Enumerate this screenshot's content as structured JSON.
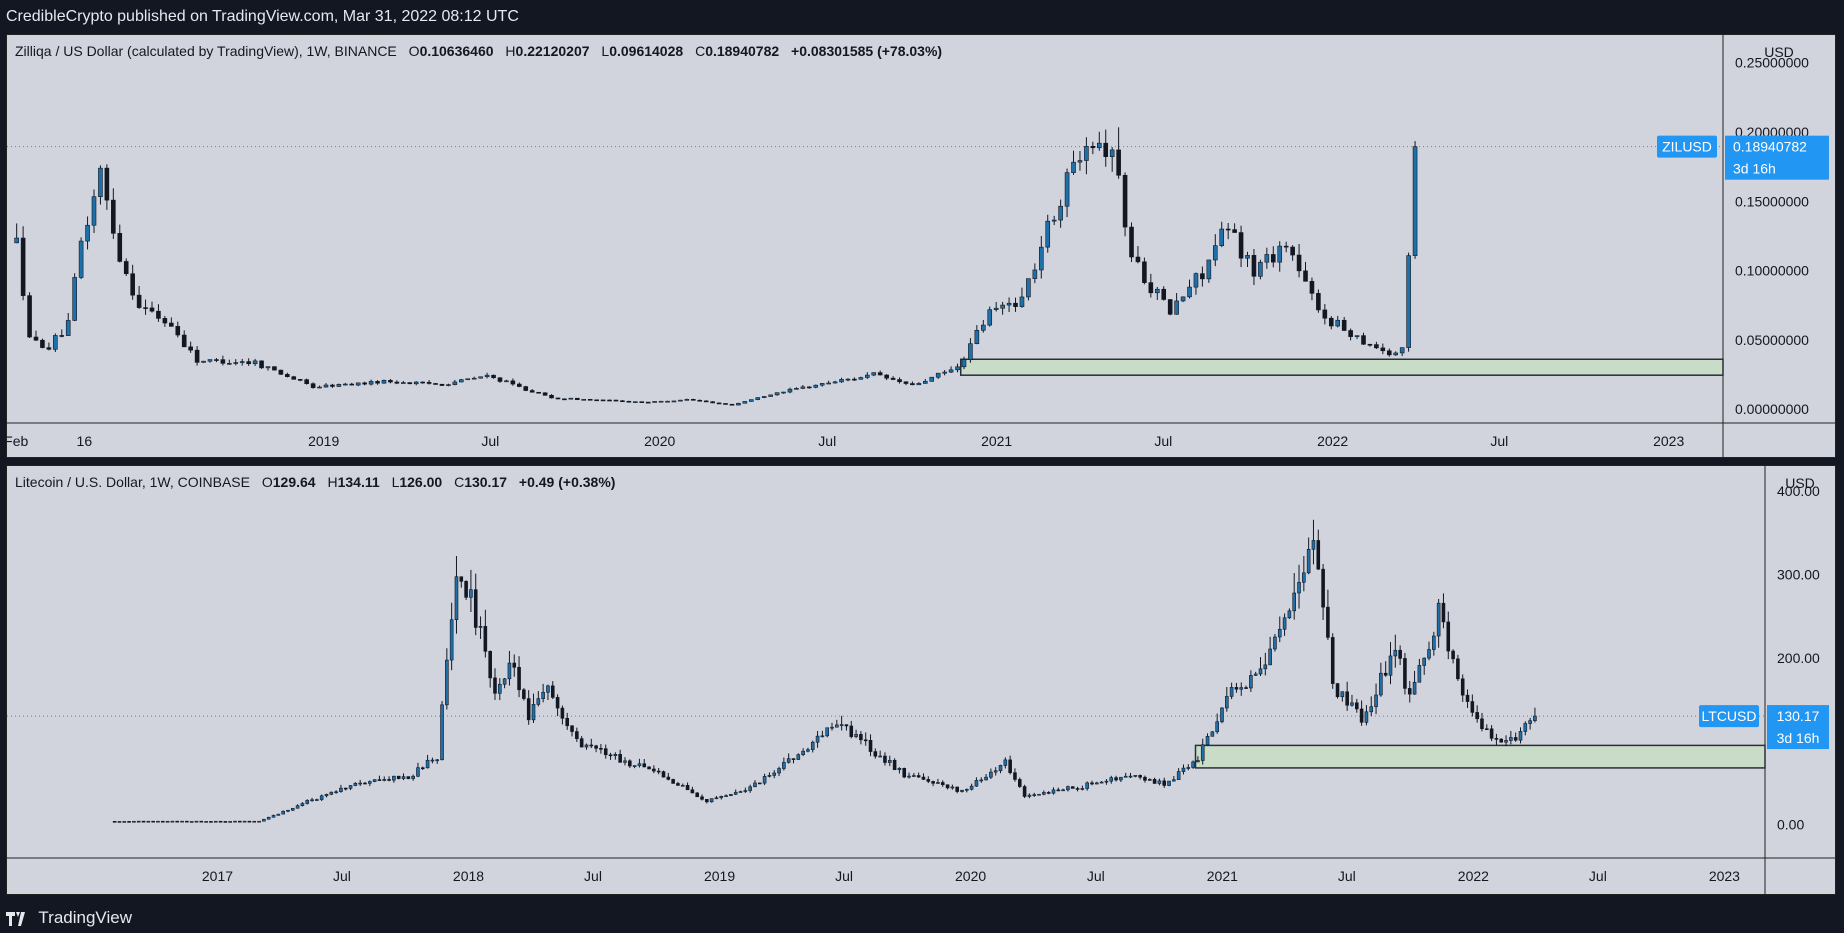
{
  "header": {
    "publisher": "CredibleCrypto published on TradingView.com, Mar 31, 2022 08:12 UTC"
  },
  "footer": {
    "brand": "TradingView"
  },
  "colors": {
    "candle_up": "#1f6fa8",
    "candle_down": "#131722",
    "price_line": "#2196f3",
    "zone_fill": "#c8dcc8",
    "tag_bg": "#2196f3"
  },
  "panels": [
    {
      "legend": {
        "title": "Zilliqa / US Dollar (calculated by TradingView), 1W, BINANCE",
        "open": "0.10636460",
        "high": "0.22120207",
        "low": "0.09614028",
        "close": "0.18940782",
        "change": "+0.08301585 (+78.03%)"
      },
      "currency": "USD",
      "symbol_tag": "ZILUSD",
      "price_tag": "0.18940782",
      "countdown": "3d 16h",
      "y_ticks": [
        "0.25000000",
        "0.20000000",
        "0.15000000",
        "0.10000000",
        "0.05000000",
        "0.00000000"
      ],
      "x_ticks": [
        "Feb",
        "16",
        "2019",
        "Jul",
        "2020",
        "Jul",
        "2021",
        "Jul",
        "2022",
        "Jul",
        "2023"
      ]
    },
    {
      "legend": {
        "title": "Litecoin / U.S. Dollar, 1W, COINBASE",
        "open": "129.64",
        "high": "134.11",
        "low": "126.00",
        "close": "130.17",
        "change": "+0.49 (+0.38%)"
      },
      "currency": "USD",
      "symbol_tag": "LTCUSD",
      "price_tag": "130.17",
      "countdown": "3d 16h",
      "y_ticks": [
        "400.00",
        "300.00",
        "200.00",
        "0.00"
      ],
      "x_ticks": [
        "2017",
        "Jul",
        "2018",
        "Jul",
        "2019",
        "Jul",
        "2020",
        "Jul",
        "2021",
        "Jul",
        "2022",
        "Jul",
        "2023"
      ]
    }
  ],
  "chart_data": [
    {
      "type": "candlestick",
      "title": "Zilliqa / US Dollar (calculated by TradingView), 1W, BINANCE",
      "ylabel": "USD",
      "ylim": [
        -0.01,
        0.27
      ],
      "x_range": [
        "2018-01-22",
        "2023-03-01"
      ],
      "last_price": 0.18940782,
      "support_zone": {
        "from": "2020-11-23",
        "low": 0.0245,
        "high": 0.036
      },
      "anchors": [
        [
          "2018-01-29",
          0.12
        ],
        [
          "2018-02-12",
          0.05
        ],
        [
          "2018-03-05",
          0.045
        ],
        [
          "2018-03-26",
          0.06
        ],
        [
          "2018-04-09",
          0.12
        ],
        [
          "2018-04-30",
          0.17
        ],
        [
          "2018-05-21",
          0.11
        ],
        [
          "2018-06-11",
          0.075
        ],
        [
          "2018-07-16",
          0.06
        ],
        [
          "2018-08-13",
          0.035
        ],
        [
          "2018-10-15",
          0.034
        ],
        [
          "2018-12-17",
          0.016
        ],
        [
          "2019-03-04",
          0.02
        ],
        [
          "2019-05-06",
          0.018
        ],
        [
          "2019-06-24",
          0.024
        ],
        [
          "2019-09-02",
          0.008
        ],
        [
          "2019-12-16",
          0.005
        ],
        [
          "2020-01-27",
          0.007
        ],
        [
          "2020-03-16",
          0.003
        ],
        [
          "2020-05-04",
          0.012
        ],
        [
          "2020-07-06",
          0.02
        ],
        [
          "2020-08-17",
          0.025
        ],
        [
          "2020-09-28",
          0.017
        ],
        [
          "2020-11-16",
          0.03
        ],
        [
          "2020-12-21",
          0.07
        ],
        [
          "2021-01-25",
          0.08
        ],
        [
          "2021-02-22",
          0.13
        ],
        [
          "2021-04-05",
          0.2
        ],
        [
          "2021-05-03",
          0.19
        ],
        [
          "2021-05-24",
          0.11
        ],
        [
          "2021-07-05",
          0.07
        ],
        [
          "2021-08-09",
          0.1
        ],
        [
          "2021-09-06",
          0.13
        ],
        [
          "2021-10-04",
          0.1
        ],
        [
          "2021-11-08",
          0.12
        ],
        [
          "2021-12-13",
          0.07
        ],
        [
          "2022-01-17",
          0.055
        ],
        [
          "2022-02-28",
          0.04
        ],
        [
          "2022-03-14",
          0.042
        ],
        [
          "2022-03-21",
          0.11
        ],
        [
          "2022-03-28",
          0.1894
        ]
      ]
    },
    {
      "type": "candlestick",
      "title": "Litecoin / U.S. Dollar, 1W, COINBASE",
      "ylabel": "USD",
      "ylim": [
        -40,
        430
      ],
      "x_range": [
        "2016-03-01",
        "2023-03-01"
      ],
      "last_price": 130.17,
      "support_zone": {
        "from": "2020-11-23",
        "low": 68,
        "high": 95
      },
      "anchors": [
        [
          "2016-08-01",
          4
        ],
        [
          "2017-02-27",
          4
        ],
        [
          "2017-05-01",
          25
        ],
        [
          "2017-07-03",
          45
        ],
        [
          "2017-08-28",
          55
        ],
        [
          "2017-09-25",
          55
        ],
        [
          "2017-11-13",
          80
        ],
        [
          "2017-12-11",
          310
        ],
        [
          "2018-01-08",
          250
        ],
        [
          "2018-02-05",
          150
        ],
        [
          "2018-02-26",
          200
        ],
        [
          "2018-03-26",
          130
        ],
        [
          "2018-04-23",
          160
        ],
        [
          "2018-06-04",
          100
        ],
        [
          "2018-07-30",
          80
        ],
        [
          "2018-10-15",
          55
        ],
        [
          "2018-12-10",
          28
        ],
        [
          "2019-02-04",
          40
        ],
        [
          "2019-05-06",
          90
        ],
        [
          "2019-06-17",
          125
        ],
        [
          "2019-07-29",
          95
        ],
        [
          "2019-09-23",
          60
        ],
        [
          "2019-12-16",
          40
        ],
        [
          "2020-02-17",
          75
        ],
        [
          "2020-03-16",
          35
        ],
        [
          "2020-06-01",
          45
        ],
        [
          "2020-08-17",
          60
        ],
        [
          "2020-10-05",
          48
        ],
        [
          "2020-11-23",
          80
        ],
        [
          "2021-01-11",
          160
        ],
        [
          "2021-02-22",
          180
        ],
        [
          "2021-04-05",
          250
        ],
        [
          "2021-05-10",
          350
        ],
        [
          "2021-06-07",
          170
        ],
        [
          "2021-07-19",
          125
        ],
        [
          "2021-09-06",
          210
        ],
        [
          "2021-09-27",
          150
        ],
        [
          "2021-11-08",
          260
        ],
        [
          "2021-12-13",
          150
        ],
        [
          "2022-01-24",
          105
        ],
        [
          "2022-02-28",
          100
        ],
        [
          "2022-03-28",
          130.17
        ]
      ]
    }
  ]
}
